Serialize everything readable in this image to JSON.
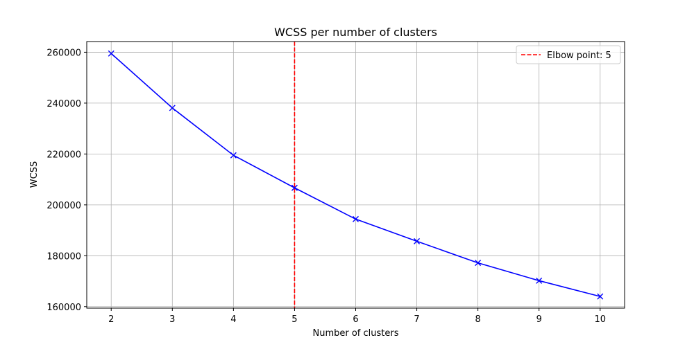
{
  "chart_data": {
    "type": "line",
    "title": "WCSS per number of clusters",
    "xlabel": "Number of clusters",
    "ylabel": "WCSS",
    "x": [
      2,
      3,
      4,
      5,
      6,
      7,
      8,
      9,
      10
    ],
    "series": [
      {
        "values": [
          259500,
          238100,
          219500,
          206700,
          194400,
          185700,
          177200,
          170200,
          164000
        ],
        "color": "#0000ff",
        "marker": "x"
      }
    ],
    "xlim": [
      1.6,
      10.4
    ],
    "ylim": [
      159400,
      264200
    ],
    "xticks": [
      2,
      3,
      4,
      5,
      6,
      7,
      8,
      9,
      10
    ],
    "yticks": [
      160000,
      180000,
      200000,
      220000,
      240000,
      260000
    ],
    "grid": true,
    "elbow": {
      "x": 5,
      "label": "Elbow point: 5",
      "color": "#ff0000",
      "style": "dashed"
    },
    "legend": {
      "placement": "top-right",
      "entries": [
        "Elbow point: 5"
      ]
    }
  }
}
